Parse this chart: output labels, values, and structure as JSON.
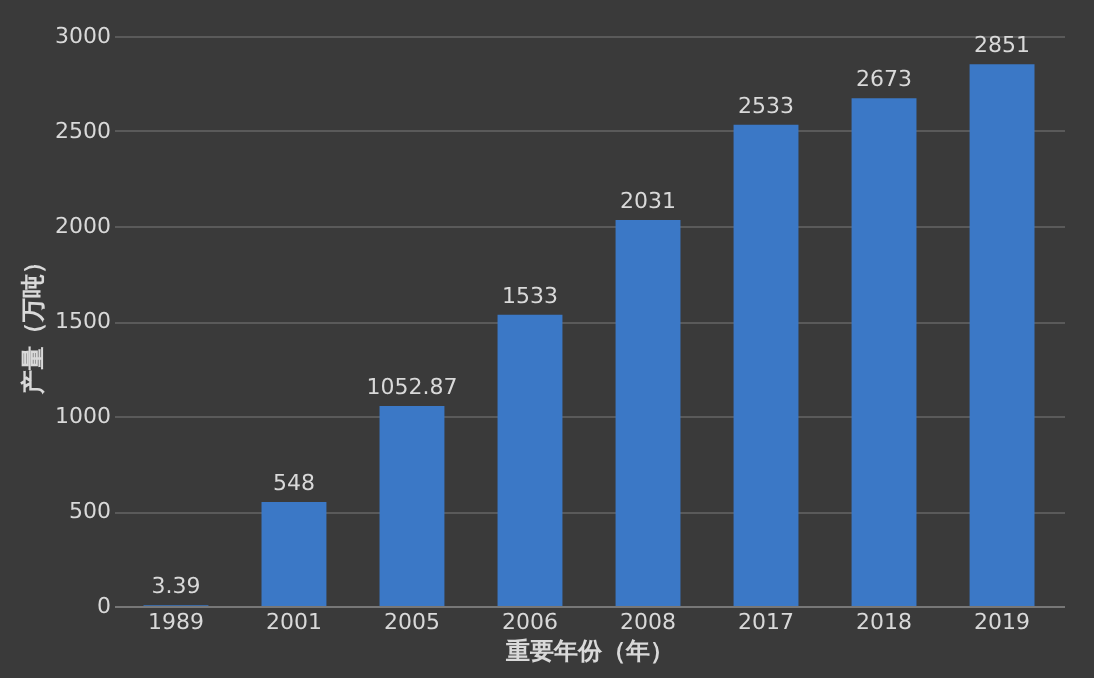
{
  "chart_data": {
    "type": "bar",
    "categories": [
      "1989",
      "2001",
      "2005",
      "2006",
      "2008",
      "2017",
      "2018",
      "2019"
    ],
    "values": [
      3.39,
      548,
      1052.87,
      1533,
      2031,
      2533,
      2673,
      2851
    ],
    "color": "#3b78c6",
    "xlabel": "重要年份（年）",
    "ylabel": "产量（万吨）",
    "ylim": [
      0,
      3000
    ],
    "yticks": [
      0,
      500,
      1000,
      1500,
      2000,
      2500,
      3000
    ],
    "grid": "y",
    "data_labels": true
  }
}
